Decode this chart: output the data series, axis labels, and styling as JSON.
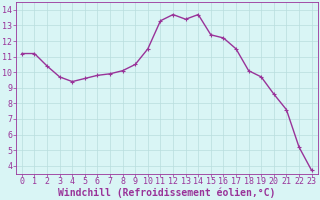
{
  "x": [
    0,
    1,
    2,
    3,
    4,
    5,
    6,
    7,
    8,
    9,
    10,
    11,
    12,
    13,
    14,
    15,
    16,
    17,
    18,
    19,
    20,
    21,
    22,
    23
  ],
  "y": [
    11.2,
    11.2,
    10.4,
    9.7,
    9.4,
    9.6,
    9.8,
    9.9,
    10.1,
    10.5,
    11.5,
    13.3,
    13.7,
    13.4,
    13.7,
    12.4,
    12.2,
    11.5,
    10.1,
    9.7,
    8.6,
    7.6,
    5.2,
    3.7
  ],
  "line_color": "#993399",
  "marker": "P",
  "marker_size": 2.5,
  "line_width": 1.0,
  "bg_color": "#d9f5f5",
  "grid_color": "#b8dede",
  "xlabel": "Windchill (Refroidissement éolien,°C)",
  "xlabel_color": "#993399",
  "tick_color": "#993399",
  "ylim": [
    3.5,
    14.5
  ],
  "xlim": [
    -0.5,
    23.5
  ],
  "yticks": [
    4,
    5,
    6,
    7,
    8,
    9,
    10,
    11,
    12,
    13,
    14
  ],
  "xticks": [
    0,
    1,
    2,
    3,
    4,
    5,
    6,
    7,
    8,
    9,
    10,
    11,
    12,
    13,
    14,
    15,
    16,
    17,
    18,
    19,
    20,
    21,
    22,
    23
  ],
  "tick_fontsize": 6,
  "xlabel_fontsize": 7
}
